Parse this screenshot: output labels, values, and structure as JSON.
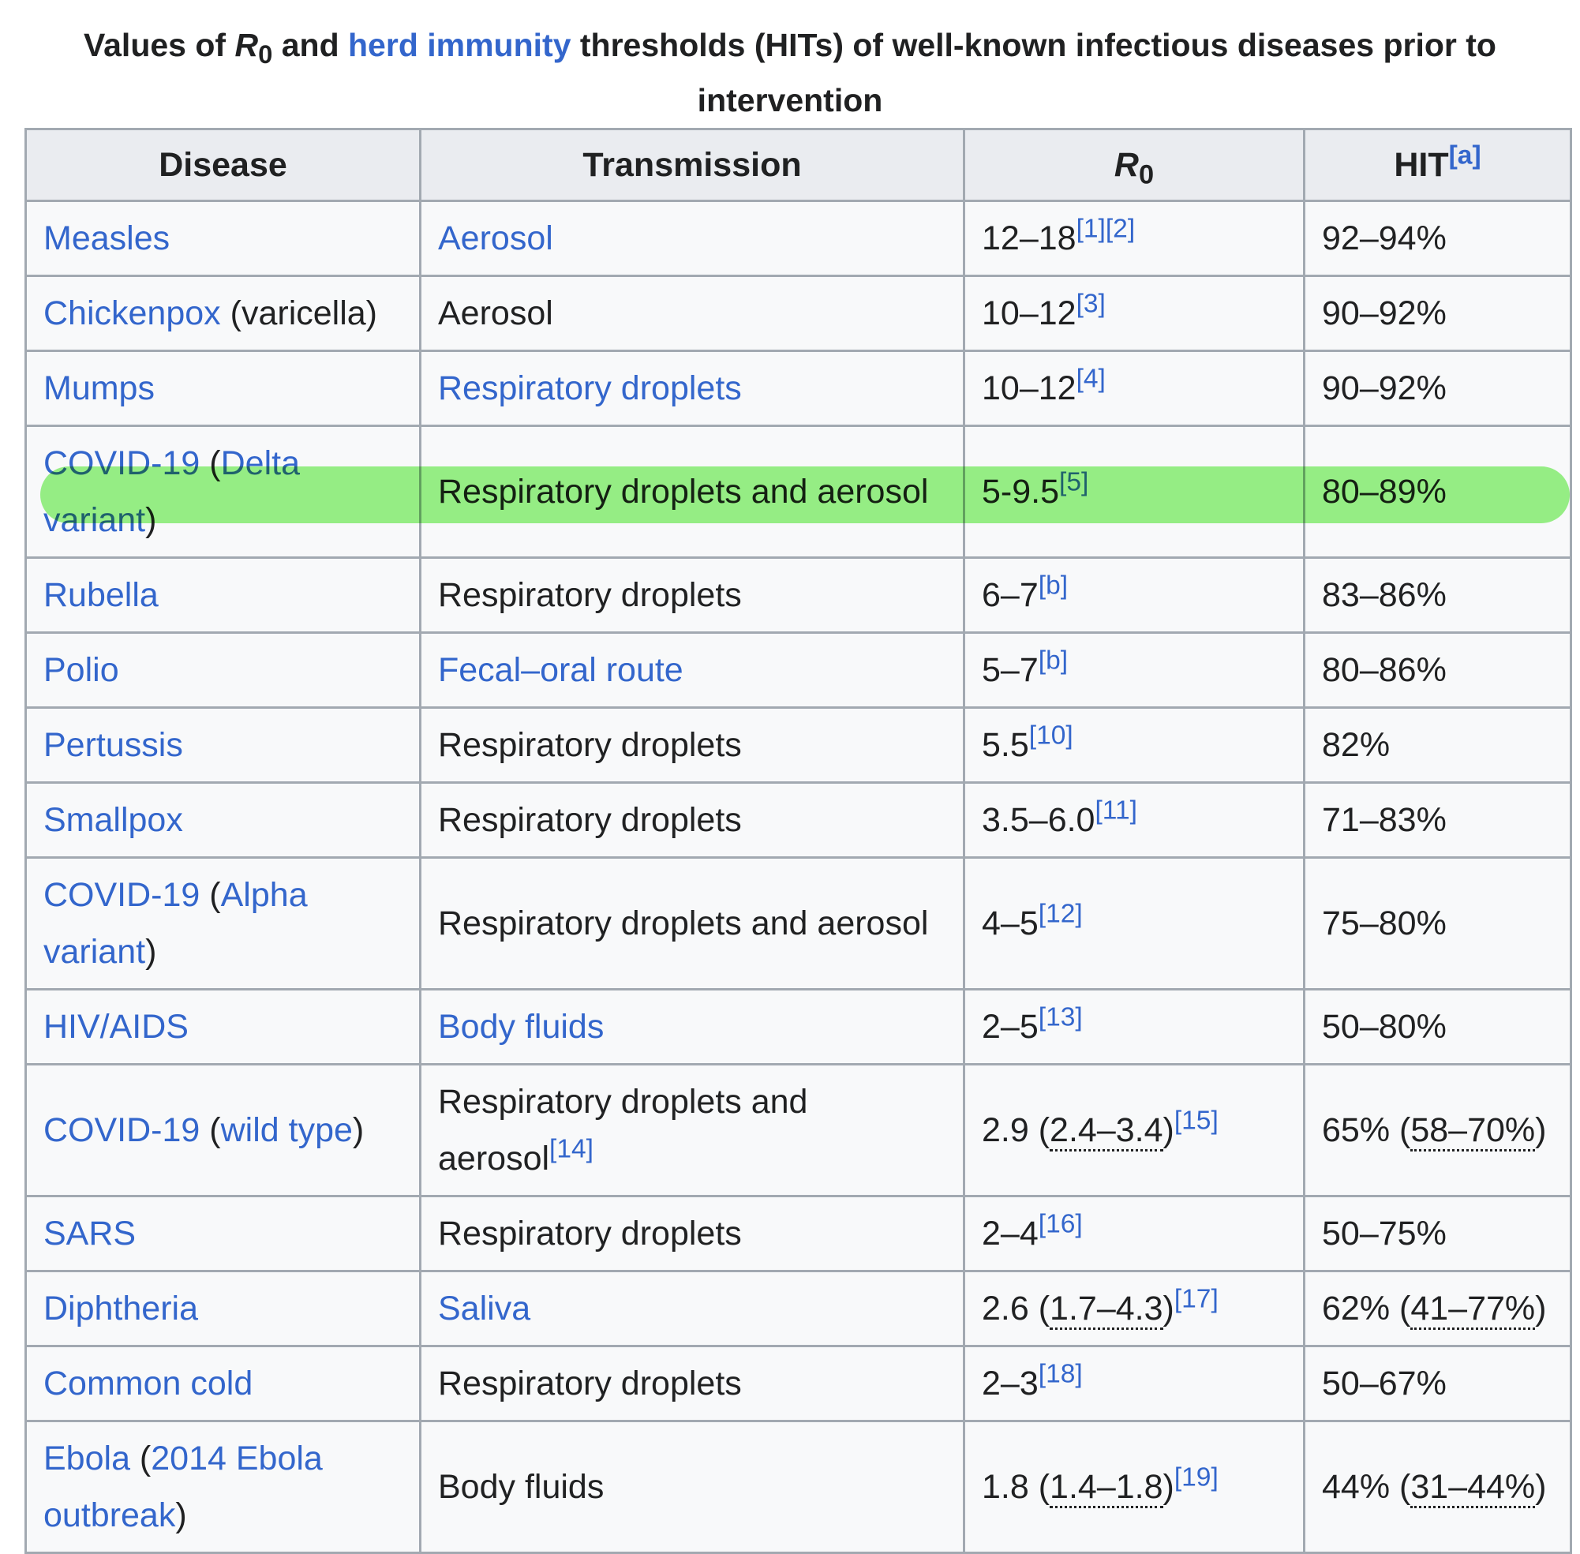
{
  "title": [
    {
      "text": "Values of "
    },
    {
      "text": "R",
      "style": "italic"
    },
    {
      "text": "0",
      "style": "sub"
    },
    {
      "text": " and "
    },
    {
      "text": "herd immunity",
      "style": "link"
    },
    {
      "text": " thresholds (HITs) of well-known infectious diseases prior to intervention"
    }
  ],
  "table": {
    "header": [
      [
        {
          "text": "Disease"
        }
      ],
      [
        {
          "text": "Transmission"
        }
      ],
      [
        {
          "text": "R",
          "style": "italic"
        },
        {
          "text": "0",
          "style": "sub"
        }
      ],
      [
        {
          "text": "HIT"
        },
        {
          "text": "[a]",
          "style": "ref"
        }
      ]
    ],
    "rows": [
      [
        [
          {
            "text": "Measles",
            "style": "link"
          }
        ],
        [
          {
            "text": "Aerosol",
            "style": "link"
          }
        ],
        [
          {
            "text": "12–18"
          },
          {
            "text": "[1]",
            "style": "ref"
          },
          {
            "text": "[2]",
            "style": "ref"
          }
        ],
        [
          {
            "text": "92–94%"
          }
        ]
      ],
      [
        [
          {
            "text": "Chickenpox",
            "style": "link"
          },
          {
            "text": " (varicella)"
          }
        ],
        [
          {
            "text": "Aerosol"
          }
        ],
        [
          {
            "text": "10–12"
          },
          {
            "text": "[3]",
            "style": "ref"
          }
        ],
        [
          {
            "text": "90–92%"
          }
        ]
      ],
      [
        [
          {
            "text": "Mumps",
            "style": "link"
          }
        ],
        [
          {
            "text": "Respiratory droplets",
            "style": "link"
          }
        ],
        [
          {
            "text": "10–12"
          },
          {
            "text": "[4]",
            "style": "ref"
          }
        ],
        [
          {
            "text": "90–92%"
          }
        ]
      ],
      [
        [
          {
            "text": "COVID-19",
            "style": "link"
          },
          {
            "text": " ("
          },
          {
            "text": "Delta variant",
            "style": "link"
          },
          {
            "text": ")"
          }
        ],
        [
          {
            "text": "Respiratory droplets and aerosol"
          }
        ],
        [
          {
            "text": "5-9.5"
          },
          {
            "text": "[5]",
            "style": "ref"
          }
        ],
        [
          {
            "text": "80–89%"
          }
        ]
      ],
      [
        [
          {
            "text": "Rubella",
            "style": "link"
          }
        ],
        [
          {
            "text": "Respiratory droplets"
          }
        ],
        [
          {
            "text": "6–7"
          },
          {
            "text": "[b]",
            "style": "ref"
          }
        ],
        [
          {
            "text": "83–86%"
          }
        ]
      ],
      [
        [
          {
            "text": "Polio",
            "style": "link"
          }
        ],
        [
          {
            "text": "Fecal–oral route",
            "style": "link"
          }
        ],
        [
          {
            "text": "5–7"
          },
          {
            "text": "[b]",
            "style": "ref"
          }
        ],
        [
          {
            "text": "80–86%"
          }
        ]
      ],
      [
        [
          {
            "text": "Pertussis",
            "style": "link"
          }
        ],
        [
          {
            "text": "Respiratory droplets"
          }
        ],
        [
          {
            "text": "5.5"
          },
          {
            "text": "[10]",
            "style": "ref"
          }
        ],
        [
          {
            "text": "82%"
          }
        ]
      ],
      [
        [
          {
            "text": "Smallpox",
            "style": "link"
          }
        ],
        [
          {
            "text": "Respiratory droplets"
          }
        ],
        [
          {
            "text": "3.5–6.0"
          },
          {
            "text": "[11]",
            "style": "ref"
          }
        ],
        [
          {
            "text": "71–83%"
          }
        ]
      ],
      [
        [
          {
            "text": "COVID-19",
            "style": "link"
          },
          {
            "text": " ("
          },
          {
            "text": "Alpha variant",
            "style": "link"
          },
          {
            "text": ")"
          }
        ],
        [
          {
            "text": "Respiratory droplets and aerosol"
          }
        ],
        [
          {
            "text": "4–5"
          },
          {
            "text": "[12]",
            "style": "ref"
          }
        ],
        [
          {
            "text": "75–80%"
          }
        ]
      ],
      [
        [
          {
            "text": "HIV/AIDS",
            "style": "link"
          }
        ],
        [
          {
            "text": "Body fluids",
            "style": "link"
          }
        ],
        [
          {
            "text": "2–5"
          },
          {
            "text": "[13]",
            "style": "ref"
          }
        ],
        [
          {
            "text": "50–80%"
          }
        ]
      ],
      [
        [
          {
            "text": "COVID-19",
            "style": "link"
          },
          {
            "text": " ("
          },
          {
            "text": "wild type",
            "style": "link"
          },
          {
            "text": ")"
          }
        ],
        [
          {
            "text": "Respiratory droplets and aerosol"
          },
          {
            "text": "[14]",
            "style": "ref"
          }
        ],
        [
          {
            "text": "2.9 ("
          },
          {
            "text": "2.4–3.4",
            "style": "abbr"
          },
          {
            "text": ")"
          },
          {
            "text": "[15]",
            "style": "ref"
          }
        ],
        [
          {
            "text": "65% ("
          },
          {
            "text": "58–70%",
            "style": "abbr"
          },
          {
            "text": ")"
          }
        ]
      ],
      [
        [
          {
            "text": "SARS",
            "style": "link"
          }
        ],
        [
          {
            "text": "Respiratory droplets"
          }
        ],
        [
          {
            "text": "2–4"
          },
          {
            "text": "[16]",
            "style": "ref"
          }
        ],
        [
          {
            "text": "50–75%"
          }
        ]
      ],
      [
        [
          {
            "text": "Diphtheria",
            "style": "link"
          }
        ],
        [
          {
            "text": "Saliva",
            "style": "link"
          }
        ],
        [
          {
            "text": "2.6 ("
          },
          {
            "text": "1.7–4.3",
            "style": "abbr"
          },
          {
            "text": ")"
          },
          {
            "text": "[17]",
            "style": "ref"
          }
        ],
        [
          {
            "text": "62% ("
          },
          {
            "text": "41–77%",
            "style": "abbr"
          },
          {
            "text": ")"
          }
        ]
      ],
      [
        [
          {
            "text": "Common cold",
            "style": "link"
          }
        ],
        [
          {
            "text": "Respiratory droplets"
          }
        ],
        [
          {
            "text": "2–3"
          },
          {
            "text": "[18]",
            "style": "ref"
          }
        ],
        [
          {
            "text": "50–67%"
          }
        ]
      ],
      [
        [
          {
            "text": "Ebola",
            "style": "link"
          },
          {
            "text": " ("
          },
          {
            "text": "2014 Ebola outbreak",
            "style": "link"
          },
          {
            "text": ")"
          }
        ],
        [
          {
            "text": "Body fluids"
          }
        ],
        [
          {
            "text": "1.8 ("
          },
          {
            "text": "1.4–1.8",
            "style": "abbr"
          },
          {
            "text": ")"
          },
          {
            "text": "[19]",
            "style": "ref"
          }
        ],
        [
          {
            "text": "44% ("
          },
          {
            "text": "31–44%",
            "style": "abbr"
          },
          {
            "text": ")"
          }
        ]
      ]
    ]
  }
}
